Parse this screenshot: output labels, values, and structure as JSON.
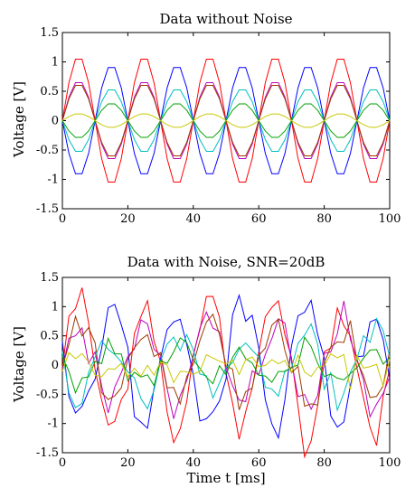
{
  "chart_data": [
    {
      "type": "line",
      "title": "Data without Noise",
      "xlabel": "",
      "ylabel": "Voltage [V]",
      "xlim": [
        0,
        100
      ],
      "ylim": [
        -1.5,
        1.5
      ],
      "xticks": [
        "0",
        "20",
        "40",
        "60",
        "80",
        "100"
      ],
      "yticks": [
        "1.5",
        "1",
        "0.5",
        "0",
        "-0.5",
        "-1",
        "-1.5"
      ],
      "grid": false,
      "signal": {
        "period_ms": 20,
        "x_start": 0,
        "x_end": 100,
        "x_step": 2
      },
      "series": [
        {
          "color": "#ff0000",
          "amplitude": 1.1,
          "phase_sign": 1
        },
        {
          "color": "#0000ff",
          "amplitude": 0.95,
          "phase_sign": -1
        },
        {
          "color": "#bf00bf",
          "amplitude": 0.68,
          "phase_sign": 1
        },
        {
          "color": "#9b3a00",
          "amplitude": 0.63,
          "phase_sign": 1
        },
        {
          "color": "#00bfbf",
          "amplitude": 0.55,
          "phase_sign": -1
        },
        {
          "color": "#00a000",
          "amplitude": 0.3,
          "phase_sign": -1
        },
        {
          "color": "#c8c800",
          "amplitude": 0.12,
          "phase_sign": 1
        }
      ]
    },
    {
      "type": "line",
      "title": "Data with Noise, SNR=20dB",
      "xlabel": "Time t [ms]",
      "ylabel": "Voltage [V]",
      "xlim": [
        0,
        100
      ],
      "ylim": [
        -1.5,
        1.5
      ],
      "xticks": [
        "0",
        "20",
        "40",
        "60",
        "80",
        "100"
      ],
      "yticks": [
        "1.5",
        "1",
        "0.5",
        "0",
        "-0.5",
        "-1",
        "-1.5"
      ],
      "grid": false,
      "signal": {
        "period_ms": 20,
        "x_start": 0,
        "x_end": 100,
        "x_step": 2
      },
      "series": [
        {
          "color": "#ff0000",
          "amplitude": 1.1,
          "phase_sign": 1,
          "noise": 0.2
        },
        {
          "color": "#0000ff",
          "amplitude": 0.95,
          "phase_sign": -1,
          "noise": 0.2
        },
        {
          "color": "#bf00bf",
          "amplitude": 0.68,
          "phase_sign": 1,
          "noise": 0.18
        },
        {
          "color": "#9b3a00",
          "amplitude": 0.63,
          "phase_sign": 1,
          "noise": 0.18
        },
        {
          "color": "#00bfbf",
          "amplitude": 0.55,
          "phase_sign": -1,
          "noise": 0.18
        },
        {
          "color": "#00a000",
          "amplitude": 0.3,
          "phase_sign": -1,
          "noise": 0.16
        },
        {
          "color": "#c8c800",
          "amplitude": 0.12,
          "phase_sign": 1,
          "noise": 0.14
        }
      ]
    }
  ]
}
